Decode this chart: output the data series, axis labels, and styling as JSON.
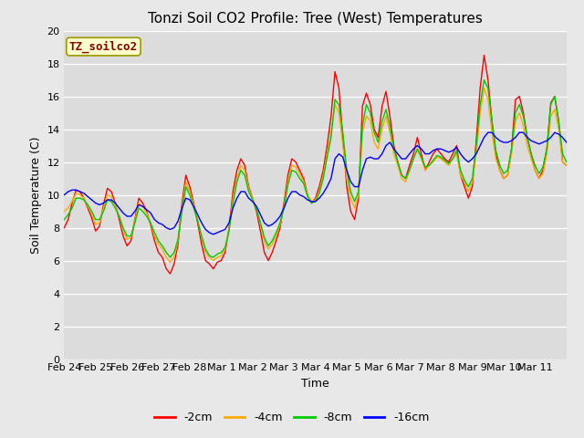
{
  "title": "Tonzi Soil CO2 Profile: Tree (West) Temperatures",
  "xlabel": "Time",
  "ylabel": "Soil Temperature (C)",
  "ylim": [
    0,
    20
  ],
  "yticks": [
    0,
    2,
    4,
    6,
    8,
    10,
    12,
    14,
    16,
    18,
    20
  ],
  "xtick_labels": [
    "Feb 24",
    "Feb 25",
    "Feb 26",
    "Feb 27",
    "Feb 28",
    "Mar 1",
    "Mar 2",
    "Mar 3",
    "Mar 4",
    "Mar 5",
    "Mar 6",
    "Mar 7",
    "Mar 8",
    "Mar 9",
    "Mar 10",
    "Mar 11"
  ],
  "legend_label": "TZ_soilco2",
  "series_labels": [
    "-2cm",
    "-4cm",
    "-8cm",
    "-16cm"
  ],
  "series_colors": [
    "#ff0000",
    "#ffaa00",
    "#00cc00",
    "#0000ff"
  ],
  "background_color": "#e8e8e8",
  "plot_bg_color": "#e0e0e0",
  "title_fontsize": 11,
  "axis_fontsize": 9,
  "tick_fontsize": 8,
  "legend_fontsize": 9,
  "t": [
    0,
    0.125,
    0.25,
    0.375,
    0.5,
    0.625,
    0.75,
    0.875,
    1.0,
    1.125,
    1.25,
    1.375,
    1.5,
    1.625,
    1.75,
    1.875,
    2.0,
    2.125,
    2.25,
    2.375,
    2.5,
    2.625,
    2.75,
    2.875,
    3.0,
    3.125,
    3.25,
    3.375,
    3.5,
    3.625,
    3.75,
    3.875,
    4.0,
    4.125,
    4.25,
    4.375,
    4.5,
    4.625,
    4.75,
    4.875,
    5.0,
    5.125,
    5.25,
    5.375,
    5.5,
    5.625,
    5.75,
    5.875,
    6.0,
    6.125,
    6.25,
    6.375,
    6.5,
    6.625,
    6.75,
    6.875,
    7.0,
    7.125,
    7.25,
    7.375,
    7.5,
    7.625,
    7.75,
    7.875,
    8.0,
    8.125,
    8.25,
    8.375,
    8.5,
    8.625,
    8.75,
    8.875,
    9.0,
    9.125,
    9.25,
    9.375,
    9.5,
    9.625,
    9.75,
    9.875,
    10.0,
    10.125,
    10.25,
    10.375,
    10.5,
    10.625,
    10.75,
    10.875,
    11.0,
    11.125,
    11.25,
    11.375,
    11.5,
    11.625,
    11.75,
    11.875,
    12.0,
    12.125,
    12.25,
    12.375,
    12.5,
    12.625,
    12.75,
    12.875,
    13.0,
    13.125,
    13.25,
    13.375,
    13.5,
    13.625,
    13.75,
    13.875,
    14.0,
    14.125,
    14.25,
    14.375,
    14.5,
    14.625,
    14.75,
    14.875,
    15.0,
    15.125,
    15.25,
    15.375,
    15.5,
    15.625,
    15.75,
    15.875,
    16.0
  ],
  "y_2cm": [
    8.0,
    8.5,
    9.5,
    10.3,
    10.2,
    9.8,
    9.2,
    8.6,
    7.8,
    8.1,
    9.4,
    10.4,
    10.2,
    9.5,
    8.5,
    7.5,
    6.9,
    7.2,
    8.5,
    9.8,
    9.5,
    9.0,
    8.2,
    7.2,
    6.5,
    6.2,
    5.5,
    5.2,
    5.8,
    7.0,
    9.5,
    11.2,
    10.5,
    9.5,
    8.3,
    7.0,
    6.0,
    5.8,
    5.5,
    5.9,
    6.0,
    6.5,
    8.0,
    10.2,
    11.5,
    12.2,
    11.8,
    10.5,
    9.8,
    9.0,
    7.8,
    6.5,
    6.0,
    6.5,
    7.2,
    8.0,
    9.5,
    11.2,
    12.2,
    12.0,
    11.5,
    11.0,
    10.0,
    9.5,
    9.8,
    10.5,
    11.5,
    13.0,
    14.8,
    17.5,
    16.5,
    13.5,
    10.5,
    9.0,
    8.5,
    9.8,
    15.4,
    16.2,
    15.5,
    14.0,
    13.5,
    15.4,
    16.3,
    14.8,
    13.0,
    12.0,
    11.2,
    11.0,
    11.8,
    12.5,
    13.5,
    12.5,
    11.5,
    12.0,
    12.5,
    12.8,
    12.5,
    12.2,
    12.0,
    12.5,
    13.0,
    11.2,
    10.5,
    9.8,
    10.5,
    13.3,
    16.5,
    18.5,
    17.0,
    14.5,
    12.5,
    11.5,
    11.0,
    11.2,
    12.8,
    15.8,
    16.0,
    15.0,
    13.5,
    12.5,
    11.5,
    11.0,
    11.5,
    12.8,
    15.6,
    16.0,
    14.5,
    12.0,
    11.8
  ],
  "y_4cm": [
    9.0,
    9.2,
    9.6,
    10.1,
    10.0,
    9.8,
    9.3,
    8.9,
    8.2,
    8.3,
    9.2,
    10.0,
    9.9,
    9.4,
    8.7,
    7.9,
    7.3,
    7.4,
    8.4,
    9.5,
    9.3,
    8.9,
    8.3,
    7.5,
    7.0,
    6.7,
    6.2,
    5.9,
    6.2,
    7.2,
    9.2,
    10.8,
    10.2,
    9.4,
    8.5,
    7.4,
    6.5,
    6.2,
    6.0,
    6.2,
    6.3,
    6.7,
    7.9,
    9.8,
    11.0,
    11.8,
    11.5,
    10.4,
    9.8,
    9.2,
    8.2,
    7.2,
    6.7,
    7.0,
    7.5,
    8.2,
    9.3,
    10.8,
    11.8,
    11.7,
    11.3,
    10.8,
    10.0,
    9.6,
    9.7,
    10.2,
    11.2,
    12.5,
    13.8,
    15.5,
    15.0,
    13.0,
    11.0,
    9.8,
    9.2,
    10.0,
    13.8,
    14.8,
    14.5,
    13.2,
    12.8,
    14.0,
    14.8,
    13.8,
    12.5,
    11.8,
    11.0,
    10.8,
    11.5,
    12.2,
    12.8,
    12.2,
    11.5,
    11.8,
    12.0,
    12.3,
    12.2,
    12.0,
    11.8,
    12.2,
    12.5,
    11.2,
    10.8,
    10.2,
    10.8,
    12.5,
    15.0,
    16.5,
    15.8,
    13.8,
    12.2,
    11.5,
    11.0,
    11.2,
    12.5,
    14.5,
    15.0,
    14.2,
    13.0,
    12.2,
    11.5,
    11.0,
    11.3,
    12.5,
    14.8,
    15.2,
    14.0,
    12.0,
    11.8
  ],
  "y_8cm": [
    8.5,
    8.8,
    9.2,
    9.8,
    9.8,
    9.7,
    9.4,
    9.0,
    8.5,
    8.5,
    9.0,
    9.7,
    9.6,
    9.2,
    8.7,
    8.0,
    7.5,
    7.5,
    8.3,
    9.2,
    9.0,
    8.7,
    8.3,
    7.7,
    7.2,
    6.9,
    6.5,
    6.2,
    6.5,
    7.3,
    9.0,
    10.5,
    10.0,
    9.2,
    8.4,
    7.5,
    6.7,
    6.3,
    6.2,
    6.4,
    6.5,
    6.8,
    7.8,
    9.5,
    10.8,
    11.5,
    11.2,
    10.2,
    9.7,
    9.1,
    8.3,
    7.4,
    6.9,
    7.2,
    7.7,
    8.3,
    9.2,
    10.6,
    11.5,
    11.4,
    11.0,
    10.7,
    9.9,
    9.5,
    9.6,
    10.1,
    11.0,
    12.3,
    13.5,
    15.8,
    15.5,
    13.8,
    11.5,
    10.2,
    9.6,
    10.2,
    14.2,
    15.5,
    15.0,
    13.8,
    13.2,
    14.5,
    15.2,
    14.2,
    12.8,
    12.0,
    11.2,
    11.0,
    11.5,
    12.2,
    12.8,
    12.3,
    11.7,
    11.8,
    12.1,
    12.4,
    12.3,
    12.1,
    11.9,
    12.2,
    12.7,
    11.5,
    10.9,
    10.5,
    11.0,
    13.0,
    15.5,
    17.0,
    16.5,
    14.5,
    12.7,
    11.8,
    11.3,
    11.5,
    12.8,
    15.0,
    15.5,
    14.8,
    13.5,
    12.5,
    11.8,
    11.3,
    11.7,
    12.8,
    15.5,
    16.0,
    14.5,
    12.5,
    12.0
  ],
  "y_16cm": [
    10.0,
    10.2,
    10.3,
    10.3,
    10.2,
    10.1,
    9.9,
    9.7,
    9.5,
    9.4,
    9.5,
    9.7,
    9.7,
    9.5,
    9.2,
    8.9,
    8.7,
    8.7,
    9.0,
    9.4,
    9.3,
    9.1,
    8.9,
    8.5,
    8.3,
    8.2,
    8.0,
    7.9,
    8.0,
    8.4,
    9.2,
    9.8,
    9.7,
    9.3,
    8.8,
    8.3,
    7.9,
    7.7,
    7.6,
    7.7,
    7.8,
    7.9,
    8.3,
    9.2,
    9.8,
    10.2,
    10.2,
    9.8,
    9.6,
    9.3,
    8.8,
    8.3,
    8.1,
    8.2,
    8.4,
    8.7,
    9.2,
    9.8,
    10.2,
    10.2,
    10.0,
    9.9,
    9.7,
    9.6,
    9.6,
    9.8,
    10.1,
    10.5,
    11.0,
    12.2,
    12.5,
    12.3,
    11.5,
    10.8,
    10.5,
    10.5,
    11.5,
    12.2,
    12.3,
    12.2,
    12.2,
    12.5,
    13.0,
    13.2,
    12.8,
    12.5,
    12.2,
    12.2,
    12.5,
    12.8,
    13.0,
    12.8,
    12.5,
    12.5,
    12.7,
    12.8,
    12.8,
    12.7,
    12.6,
    12.7,
    12.9,
    12.5,
    12.2,
    12.0,
    12.2,
    12.5,
    13.0,
    13.5,
    13.8,
    13.8,
    13.5,
    13.3,
    13.2,
    13.2,
    13.3,
    13.5,
    13.8,
    13.8,
    13.5,
    13.3,
    13.2,
    13.1,
    13.2,
    13.3,
    13.5,
    13.8,
    13.7,
    13.5,
    13.2
  ]
}
